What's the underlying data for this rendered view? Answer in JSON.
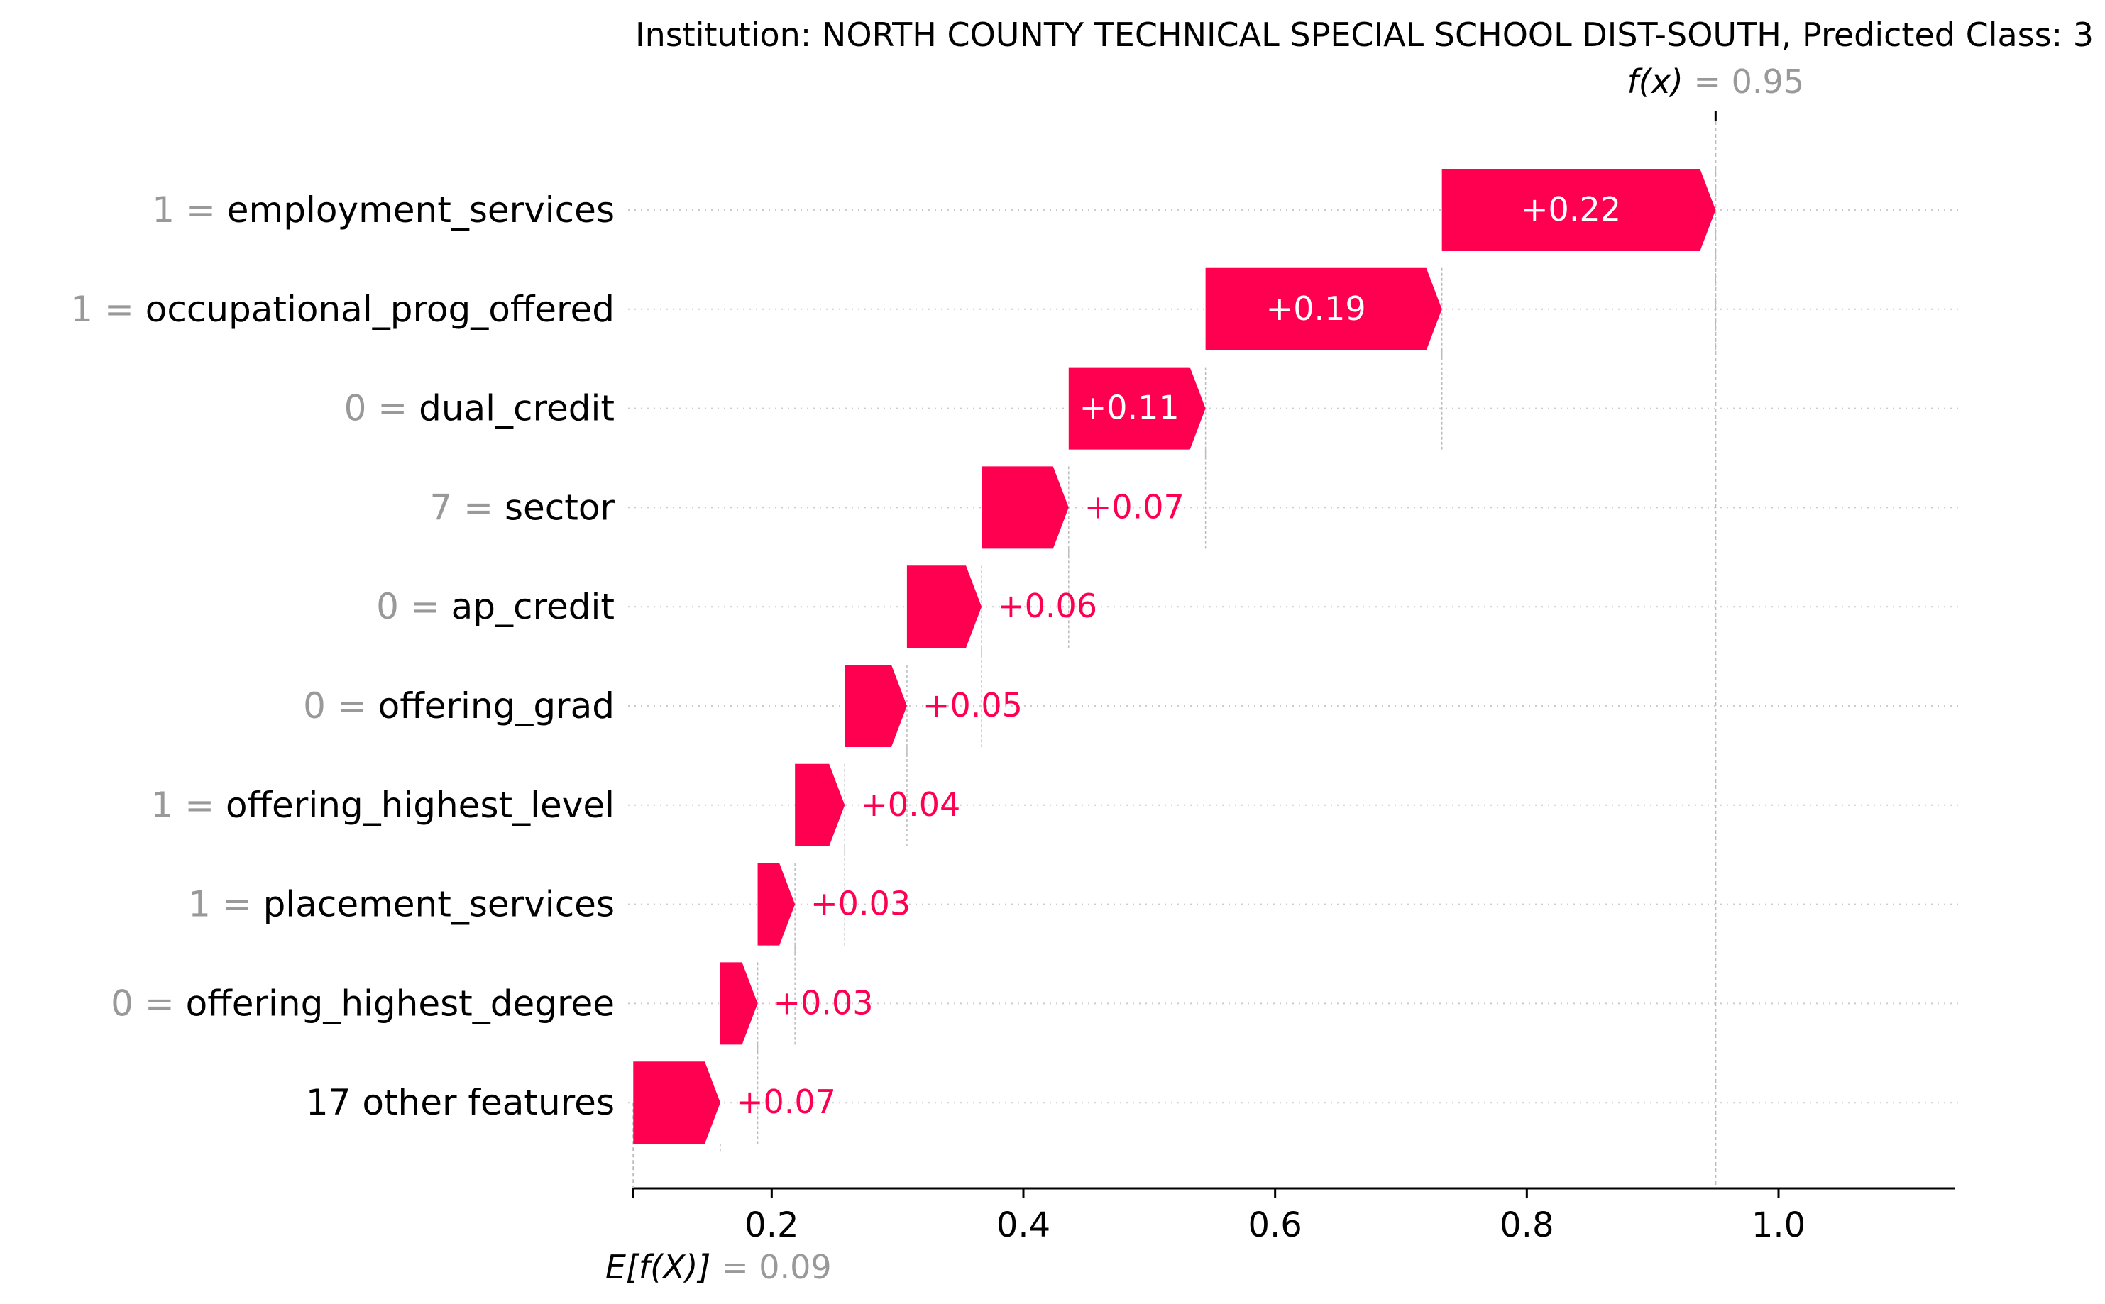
{
  "chart_data": {
    "type": "waterfall",
    "title": "Institution: NORTH COUNTY TECHNICAL SPECIAL SCHOOL DIST-SOUTH, Predicted Class: 3",
    "fx_label": "f(x)",
    "fx_value": "0.95",
    "base_label": "E[f(X)]",
    "base_value": "0.09",
    "base": 0.09,
    "final": 0.95,
    "xlim": [
      0.09,
      1.1
    ],
    "xticks": [
      0.2,
      0.4,
      0.6,
      0.8,
      1.0
    ],
    "xtick_labels": [
      "0.2",
      "0.4",
      "0.6",
      "0.8",
      "1.0"
    ],
    "features": [
      {
        "value": "1",
        "name": "employment_services",
        "contribution": 0.22,
        "label": "+0.22"
      },
      {
        "value": "1",
        "name": "occupational_prog_offered",
        "contribution": 0.19,
        "label": "+0.19"
      },
      {
        "value": "0",
        "name": "dual_credit",
        "contribution": 0.11,
        "label": "+0.11"
      },
      {
        "value": "7",
        "name": "sector",
        "contribution": 0.07,
        "label": "+0.07"
      },
      {
        "value": "0",
        "name": "ap_credit",
        "contribution": 0.06,
        "label": "+0.06"
      },
      {
        "value": "0",
        "name": "offering_grad",
        "contribution": 0.05,
        "label": "+0.05"
      },
      {
        "value": "1",
        "name": "offering_highest_level",
        "contribution": 0.04,
        "label": "+0.04"
      },
      {
        "value": "1",
        "name": "placement_services",
        "contribution": 0.03,
        "label": "+0.03"
      },
      {
        "value": "0",
        "name": "offering_highest_degree",
        "contribution": 0.03,
        "label": "+0.03"
      },
      {
        "value": "",
        "name": "17 other features",
        "contribution": 0.07,
        "label": "+0.07"
      }
    ],
    "colors": {
      "positive": "#ff0051",
      "label_white": "#ffffff",
      "feature_value": "#999999",
      "text": "#000000",
      "grid": "#cccccc",
      "guide": "#bbbbbb"
    }
  }
}
